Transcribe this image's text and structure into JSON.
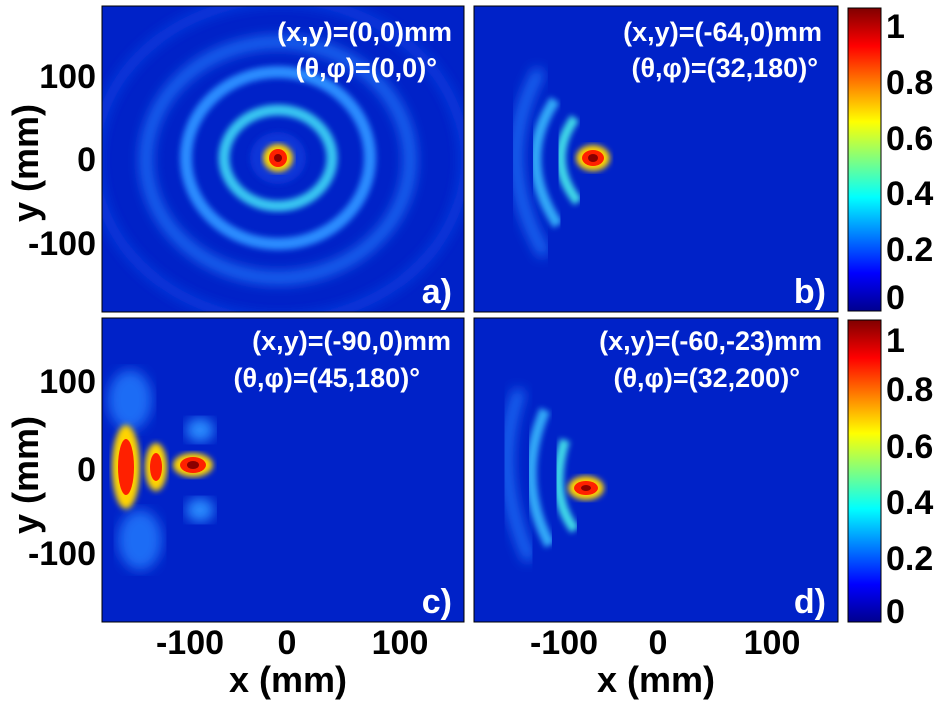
{
  "chart_data": {
    "type": "heatmap",
    "x_axis_label": "x (mm)",
    "y_axis_label": "y (mm)",
    "xlim": [
      -180,
      170
    ],
    "ylim": [
      -180,
      180
    ],
    "colorbar": {
      "colormap": "jet",
      "range": [
        0,
        1
      ],
      "ticks": [
        0,
        0.2,
        0.4,
        0.6,
        0.8,
        1
      ],
      "tick_labels": [
        "0",
        "0.2",
        "0.4",
        "0.6",
        "0.8",
        "1"
      ]
    },
    "x_tick_labels": [
      "-100",
      "0",
      "100"
    ],
    "y_tick_labels": [
      "100",
      "0",
      "-100"
    ],
    "panels": [
      {
        "id": "a",
        "label": "a)",
        "annotation_line1": "(x,y)=(0,0)mm",
        "annotation_line2": "(θ,φ)=(0,0)°",
        "focus_mm": [
          0,
          0
        ],
        "theta_deg": 0,
        "phi_deg": 0,
        "peak_value": 1
      },
      {
        "id": "b",
        "label": "b)",
        "annotation_line1": "(x,y)=(-64,0)mm",
        "annotation_line2": "(θ,φ)=(32,180)°",
        "focus_mm": [
          -64,
          0
        ],
        "theta_deg": 32,
        "phi_deg": 180,
        "peak_value": 1
      },
      {
        "id": "c",
        "label": "c)",
        "annotation_line1": "(x,y)=(-90,0)mm",
        "annotation_line2": "(θ,φ)=(45,180)°",
        "focus_mm": [
          -90,
          0
        ],
        "theta_deg": 45,
        "phi_deg": 180,
        "peak_value": 1
      },
      {
        "id": "d",
        "label": "d)",
        "annotation_line1": "(x,y)=(-60,-23)mm",
        "annotation_line2": "(θ,φ)=(32,200)°",
        "focus_mm": [
          -60,
          -23
        ],
        "theta_deg": 32,
        "phi_deg": 200,
        "peak_value": 1
      }
    ]
  }
}
